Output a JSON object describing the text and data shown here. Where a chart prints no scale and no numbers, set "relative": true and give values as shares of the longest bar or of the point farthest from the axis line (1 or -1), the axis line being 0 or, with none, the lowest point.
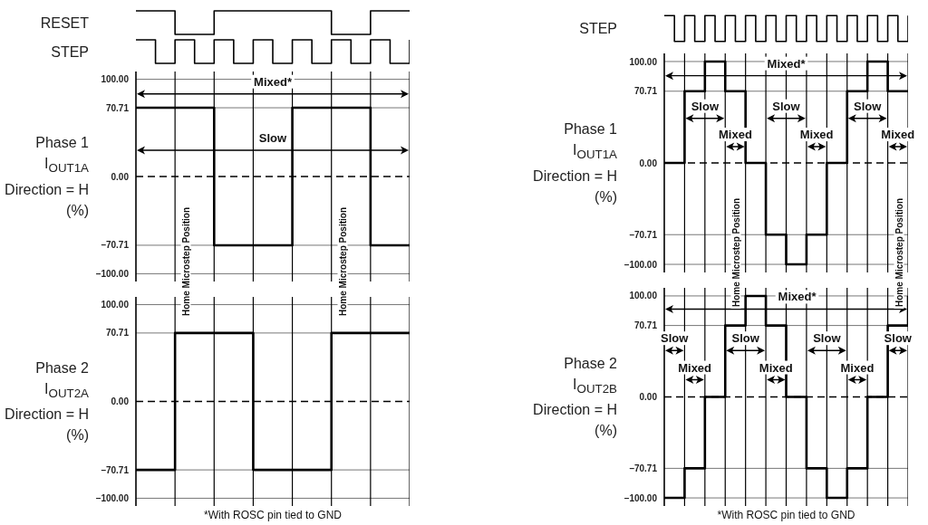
{
  "chart_data": [
    {
      "type": "step",
      "relative": true,
      "ylabel": "RESET",
      "categories": [
        null,
        null,
        null,
        null,
        null,
        null,
        null,
        null
      ],
      "values": [
        1,
        0,
        1,
        1,
        1,
        0,
        1,
        1
      ],
      "color": "#000000"
    },
    {
      "type": "step",
      "relative": true,
      "ylabel": "STEP",
      "categories": [
        null,
        null,
        null,
        null,
        null,
        null,
        null,
        null,
        null,
        null,
        null,
        null,
        null,
        null,
        null
      ],
      "values": [
        1,
        0,
        1,
        0,
        1,
        0,
        1,
        0,
        1,
        0,
        1,
        0,
        1,
        0,
        1
      ],
      "color": "#000000"
    },
    {
      "type": "step",
      "ylabel": "Phase 1\nI$_{OUT1A}$\nDirection = H\n(%)",
      "categories": [
        null,
        null,
        null,
        null,
        null,
        null,
        null,
        null
      ],
      "values": [
        70.71,
        70.71,
        -70.71,
        -70.71,
        70.71,
        70.71,
        -70.71,
        -70.71
      ],
      "color": "#000000",
      "ylim": [
        -108,
        108
      ],
      "yticks": [
        {
          "value": 100,
          "label": "100.00"
        },
        {
          "value": 70.71,
          "label": "70.71"
        },
        {
          "value": 0,
          "label": "0.00"
        },
        {
          "value": -70.71,
          "label": "–70.71"
        },
        {
          "value": -100,
          "label": "–100.00"
        }
      ],
      "grid": true,
      "ref_lines": [
        {
          "axis": "y",
          "value": 0,
          "line_style": "dashed"
        }
      ],
      "annotations": [
        "Mixed*",
        "Slow",
        "Home Microstep Position",
        "Home Microstep Position"
      ]
    },
    {
      "type": "step",
      "ylabel": "Phase 2\nI$_{OUT2A}$\nDirection = H\n(%)",
      "categories": [
        null,
        null,
        null,
        null,
        null,
        null,
        null,
        null
      ],
      "values": [
        -70.71,
        70.71,
        70.71,
        -70.71,
        -70.71,
        70.71,
        70.71,
        70.71
      ],
      "color": "#000000",
      "ylim": [
        -108,
        108
      ],
      "yticks": [
        {
          "value": 100,
          "label": "100.00"
        },
        {
          "value": 70.71,
          "label": "70.71"
        },
        {
          "value": 0,
          "label": "0.00"
        },
        {
          "value": -70.71,
          "label": "–70.71"
        },
        {
          "value": -100,
          "label": "–100.00"
        }
      ],
      "grid": true,
      "ref_lines": [
        {
          "axis": "y",
          "value": 0,
          "line_style": "dashed"
        }
      ],
      "annotations": [
        "*With ROSC pin tied to GND"
      ]
    },
    {
      "type": "step",
      "relative": true,
      "ylabel": "STEP",
      "categories": [
        null,
        null,
        null,
        null,
        null,
        null,
        null,
        null,
        null,
        null,
        null,
        null,
        null,
        null,
        null,
        null,
        null,
        null,
        null,
        null,
        null,
        null,
        null,
        null,
        null
      ],
      "values": [
        1,
        0,
        1,
        0,
        1,
        0,
        1,
        0,
        1,
        0,
        1,
        0,
        1,
        0,
        1,
        0,
        1,
        0,
        1,
        0,
        1,
        0,
        1,
        0,
        1
      ],
      "color": "#000000"
    },
    {
      "type": "step",
      "ylabel": "Phase 1\nI$_{OUT1A}$\nDirection = H\n(%)",
      "categories": [
        null,
        null,
        null,
        null,
        null,
        null,
        null,
        null,
        null,
        null,
        null,
        null,
        null
      ],
      "values": [
        0,
        70.71,
        100,
        70.71,
        0,
        -70.71,
        -100,
        -70.71,
        0,
        70.71,
        100,
        70.71,
        70.71
      ],
      "color": "#000000",
      "ylim": [
        -108,
        108
      ],
      "yticks": [
        {
          "value": 100,
          "label": "100.00"
        },
        {
          "value": 70.71,
          "label": "70.71"
        },
        {
          "value": 0,
          "label": "0.00"
        },
        {
          "value": -70.71,
          "label": "–70.71"
        },
        {
          "value": -100,
          "label": "–100.00"
        }
      ],
      "grid": true,
      "ref_lines": [
        {
          "axis": "y",
          "value": 0,
          "line_style": "dashed"
        }
      ],
      "annotations": [
        "Mixed*",
        "Slow",
        "Slow",
        "Slow",
        "Mixed",
        "Mixed",
        "Mixed",
        "Home Microstep Position",
        "Home Microstep Position"
      ]
    },
    {
      "type": "step",
      "ylabel": "Phase 2\nI$_{OUT2B}$\nDirection = H\n(%)",
      "categories": [
        null,
        null,
        null,
        null,
        null,
        null,
        null,
        null,
        null,
        null,
        null,
        null,
        null
      ],
      "values": [
        -100,
        -70.71,
        0,
        70.71,
        100,
        70.71,
        0,
        -70.71,
        -100,
        -70.71,
        0,
        70.71,
        100
      ],
      "color": "#000000",
      "ylim": [
        -108,
        108
      ],
      "yticks": [
        {
          "value": 100,
          "label": "100.00"
        },
        {
          "value": 70.71,
          "label": "70.71"
        },
        {
          "value": 0,
          "label": "0.00"
        },
        {
          "value": -70.71,
          "label": "–70.71"
        },
        {
          "value": -100,
          "label": "–100.00"
        }
      ],
      "grid": true,
      "ref_lines": [
        {
          "axis": "y",
          "value": 0,
          "line_style": "dashed"
        }
      ],
      "annotations": [
        "Mixed*",
        "Slow",
        "Slow",
        "Slow",
        "Slow",
        "Mixed",
        "Mixed",
        "Mixed",
        "*With ROSC pin tied to GND"
      ]
    }
  ]
}
